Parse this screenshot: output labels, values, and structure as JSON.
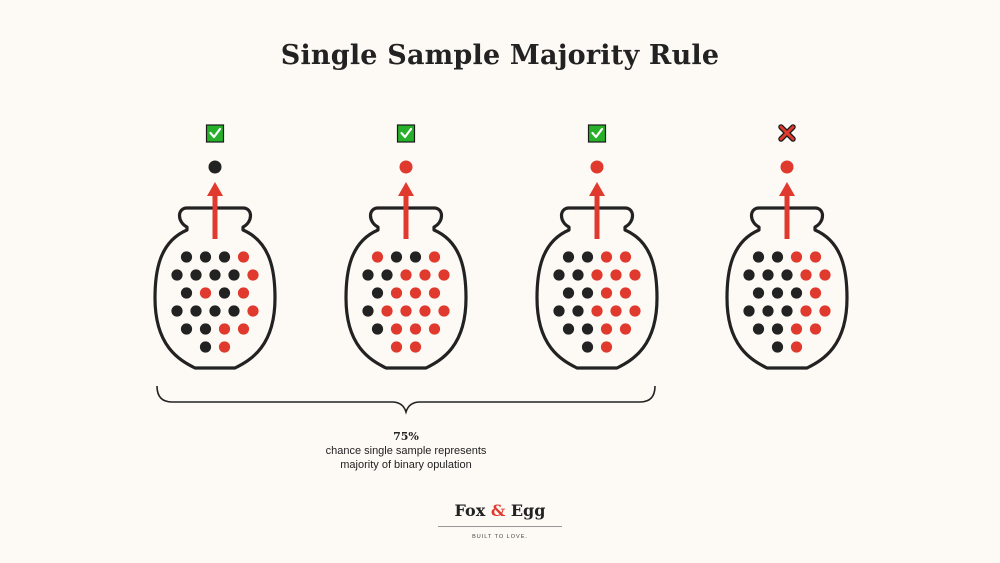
{
  "title": "Single Sample Majority Rule",
  "colors": {
    "background": "#fdfaf5",
    "black_ball": "#222222",
    "red_ball": "#e03a2f",
    "check_green": "#27b02a",
    "cross_red": "#e03a2f",
    "outline": "#222222"
  },
  "jars": [
    {
      "result": "check",
      "result_icon": "checkbox-check-icon",
      "sample": "black",
      "rows": [
        [
          "black",
          "black",
          "black",
          "red"
        ],
        [
          "black",
          "black",
          "black",
          "black",
          "red"
        ],
        [
          "black",
          "red",
          "black",
          "red"
        ],
        [
          "black",
          "black",
          "black",
          "black",
          "red"
        ],
        [
          "black",
          "black",
          "red",
          "red"
        ],
        [
          "black",
          "red"
        ]
      ]
    },
    {
      "result": "check",
      "result_icon": "checkbox-check-icon",
      "sample": "red",
      "rows": [
        [
          "red",
          "black",
          "black",
          "red"
        ],
        [
          "black",
          "black",
          "red",
          "red",
          "red"
        ],
        [
          "black",
          "red",
          "red",
          "red"
        ],
        [
          "black",
          "red",
          "red",
          "red",
          "red"
        ],
        [
          "black",
          "red",
          "red",
          "red"
        ],
        [
          "red",
          "red"
        ]
      ]
    },
    {
      "result": "check",
      "result_icon": "checkbox-check-icon",
      "sample": "red",
      "rows": [
        [
          "black",
          "black",
          "red",
          "red"
        ],
        [
          "black",
          "black",
          "red",
          "red",
          "red"
        ],
        [
          "black",
          "black",
          "red",
          "red"
        ],
        [
          "black",
          "black",
          "red",
          "red",
          "red"
        ],
        [
          "black",
          "black",
          "red",
          "red"
        ],
        [
          "black",
          "red"
        ]
      ]
    },
    {
      "result": "cross",
      "result_icon": "red-cross-icon",
      "sample": "red",
      "rows": [
        [
          "black",
          "black",
          "red",
          "red"
        ],
        [
          "black",
          "black",
          "black",
          "red",
          "red"
        ],
        [
          "black",
          "black",
          "black",
          "red"
        ],
        [
          "black",
          "black",
          "black",
          "red",
          "red"
        ],
        [
          "black",
          "black",
          "red",
          "red"
        ],
        [
          "black",
          "red"
        ]
      ]
    }
  ],
  "summary": {
    "percent": "75%",
    "line1": "chance single sample represents",
    "line2": "majority of binary opulation"
  },
  "brand": {
    "name_part1": "Fox",
    "ampersand": "&",
    "name_part2": "Egg",
    "tagline": "BUILT TO LOVE."
  }
}
